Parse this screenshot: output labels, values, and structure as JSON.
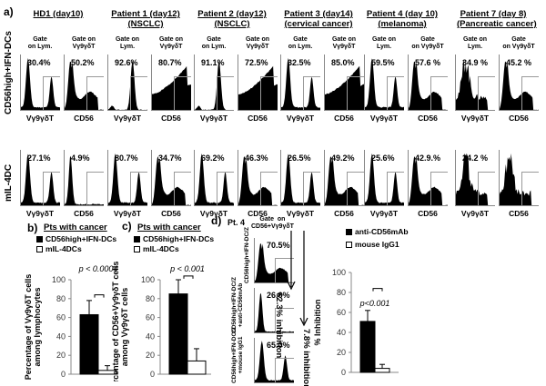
{
  "panel_a": {
    "letter": "a)",
    "row_labels": [
      "CD56high+IFN-DCs",
      "mIL-4DC"
    ],
    "columns": [
      {
        "title": [
          "HD1 (day10)"
        ],
        "gates": [
          "Gate\non Lym.",
          "Gate on\nVγ9γδT"
        ],
        "row1": [
          "30.4%",
          "50.2%"
        ],
        "row2": [
          "27.1%",
          "4.9%"
        ],
        "axes": [
          "Vγ9γδT",
          "CD56"
        ]
      },
      {
        "title": [
          "Patient 1 (day12)",
          "(NSCLC)"
        ],
        "gates": [
          "Gate on\nLym.",
          "Gate on\nVγ9γδT"
        ],
        "row1": [
          "92.6%",
          "80.7%"
        ],
        "row2": [
          "80.7%",
          "34.7%"
        ],
        "axes": [
          "Vγ9γδT",
          "CD56"
        ]
      },
      {
        "title": [
          "Patient 2 (day12)",
          "(NSCLC)"
        ],
        "gates": [
          "Gate\non Lym.",
          "Gate on\nVγ9γδT"
        ],
        "row1": [
          "91.1%",
          "72.5%"
        ],
        "row2": [
          "69.2%",
          "46.3%"
        ],
        "axes": [
          "Vγ9γδT",
          "CD56"
        ]
      },
      {
        "title": [
          "Patient 3 (day14)",
          "(cervical cancer)"
        ],
        "gates": [
          "Gate\non Lym.",
          "Gate on\nVγ9γδT"
        ],
        "row1": [
          "32.5%",
          "85.0%"
        ],
        "row2": [
          "26.5%",
          "49.2%"
        ],
        "axes": [
          "Vγ9γδT",
          "CD56"
        ]
      },
      {
        "title": [
          "Patient 4 (day 10)",
          "(melanoma)"
        ],
        "gates": [
          "Gate on\nLym.",
          "Gate\non Vγ9γδT"
        ],
        "row1": [
          "59.5%",
          "57.6  %"
        ],
        "row2": [
          "25.6%",
          "42.9.%"
        ],
        "axes": [
          "Vγ9γδT",
          "CD56"
        ]
      },
      {
        "title": [
          "Patient 7 (day 8)",
          "(Pancreatic cancer)"
        ],
        "gates": [
          "Gate on\nLym.",
          "Gate\non Vγ9γδT"
        ],
        "row1": [
          "34.9 %",
          "45.2 %"
        ],
        "row2": [
          "24.2 %",
          ""
        ],
        "axes": [
          "Vγ9γδT",
          "CD56"
        ]
      }
    ]
  },
  "chart_data": [
    {
      "id": "b",
      "type": "bar",
      "letter": "b)",
      "title": "Pts with cancer",
      "legend": [
        "CD56high+IFN-DCs",
        "mIL-4DCs"
      ],
      "categories": [
        "CD56high+IFN-DCs",
        "mIL-4DCs"
      ],
      "values": [
        63,
        4
      ],
      "errors": [
        15,
        5
      ],
      "ylabel": "Percentage of Vγ9γδT cells among lymphocytes",
      "ylim": [
        0,
        100
      ],
      "yticks": [
        "0",
        "20",
        "40",
        "60",
        "80",
        "100"
      ],
      "annotation": "p < 0.0004",
      "colors": [
        "#000000",
        "#ffffff"
      ]
    },
    {
      "id": "c",
      "type": "bar",
      "letter": "c)",
      "title": "Pts with cancer",
      "legend": [
        "CD56high+IFN-DCs",
        "mIL-4DCs"
      ],
      "categories": [
        "CD56high+IFN-DCs",
        "mIL-4DCs"
      ],
      "values": [
        85,
        14
      ],
      "errors": [
        15,
        13
      ],
      "ylabel": "Percentage of CD56+Vγ9γδT cells among Vγ9γδT cells",
      "ylim": [
        0,
        100
      ],
      "yticks": [
        "0",
        "20",
        "40",
        "60",
        "80",
        "100"
      ],
      "annotation": "p < 0.001",
      "colors": [
        "#000000",
        "#ffffff"
      ]
    },
    {
      "id": "d",
      "type": "bar",
      "letter": "d)",
      "title": "",
      "legend": [
        "anti-CD56mAb",
        "mouse IgG1"
      ],
      "categories": [
        "anti-CD56mAb",
        "mouse IgG1"
      ],
      "values": [
        51,
        4
      ],
      "errors": [
        11,
        4
      ],
      "ylabel": "% Inhibition",
      "ylim": [
        0,
        100
      ],
      "yticks": [
        "0",
        "20",
        "40",
        "60",
        "80",
        "100"
      ],
      "annotation": "p<0.001",
      "colors": [
        "#000000",
        "#ffffff"
      ]
    }
  ],
  "panel_d": {
    "patient": "Pt. 4",
    "gate": "Gate  on\nCD56+Vγ9γδT",
    "rows": [
      {
        "label": "CD56high+IFN-DC/Z",
        "pct": "70.5%"
      },
      {
        "label": "CD56high+IFN-DC/Z\n+anti-CD56mAb",
        "pct": "26.6%"
      },
      {
        "label": "CD56high+IFN-DC/Z\n+mouse IgG1",
        "pct": "65.0%"
      }
    ],
    "inhibition1": "62.3% inhibition",
    "inhibition2": "7.8% inhibition"
  }
}
